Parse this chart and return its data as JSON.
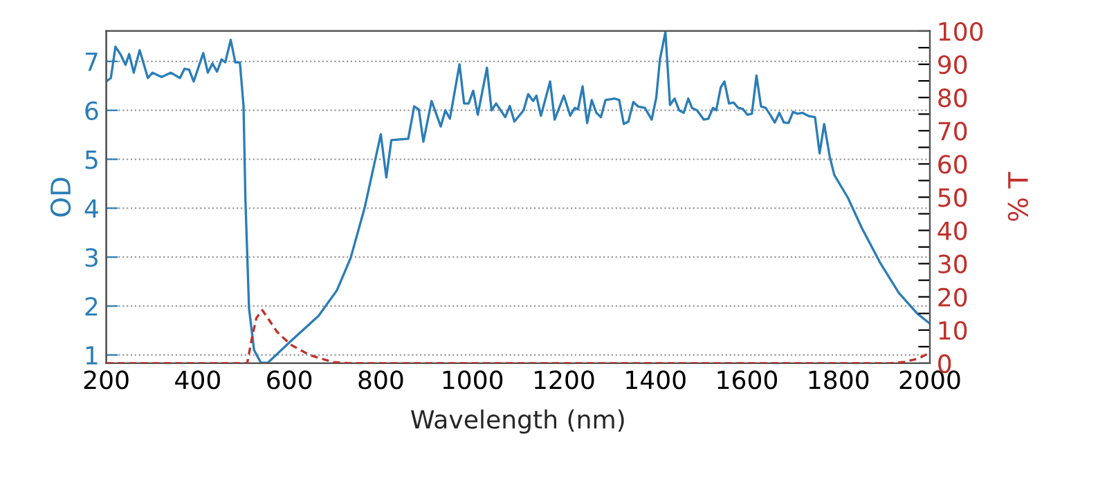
{
  "chart_data": {
    "type": "line",
    "xlabel": "Wavelength (nm)",
    "ylabel": "OD",
    "y2label": "% T",
    "xlim": [
      200,
      2000
    ],
    "xticks": [
      200,
      400,
      600,
      800,
      1000,
      1200,
      1400,
      1600,
      1800,
      2000
    ],
    "ylim": [
      0.83,
      7.62
    ],
    "yticks": [
      1,
      2,
      3,
      4,
      5,
      6,
      7
    ],
    "y2lim": [
      0,
      100
    ],
    "y2ticks": [
      0,
      {
        "value": 5,
        "label": null
      },
      10,
      {
        "value": 15,
        "label": null
      },
      20,
      {
        "value": 25,
        "label": null
      },
      30,
      {
        "value": 35,
        "label": null
      },
      40,
      {
        "value": 45,
        "label": null
      },
      50,
      {
        "value": 55,
        "label": null
      },
      60,
      {
        "value": 65,
        "label": null
      },
      70,
      {
        "value": 75,
        "label": null
      },
      80,
      {
        "value": 85,
        "label": null
      },
      90,
      {
        "value": 95,
        "label": null
      },
      100
    ],
    "grid": "y",
    "legend": false,
    "series": [
      {
        "color": "#2a7db8",
        "line_style": "solid",
        "x": [
          200,
          210,
          220,
          232,
          242,
          250,
          260,
          273,
          291,
          301,
          321,
          341,
          361,
          371,
          381,
          391,
          412,
          422,
          432,
          442,
          452,
          460,
          472,
          482,
          492,
          500,
          504,
          512,
          523,
          538,
          553,
          603,
          664,
          704,
          734,
          765,
          800,
          812,
          823,
          860,
          873,
          883,
          893,
          911,
          931,
          941,
          951,
          972,
          982,
          992,
          1002,
          1012,
          1032,
          1042,
          1052,
          1072,
          1082,
          1092,
          1112,
          1122,
          1133,
          1140,
          1150,
          1170,
          1180,
          1200,
          1214,
          1224,
          1231,
          1241,
          1251,
          1261,
          1271,
          1281,
          1291,
          1311,
          1321,
          1331,
          1341,
          1352,
          1362,
          1377,
          1392,
          1402,
          1410,
          1422,
          1432,
          1442,
          1452,
          1462,
          1472,
          1480,
          1491,
          1506,
          1516,
          1526,
          1533,
          1543,
          1551,
          1561,
          1571,
          1581,
          1591,
          1601,
          1611,
          1621,
          1631,
          1641,
          1651,
          1661,
          1671,
          1681,
          1691,
          1701,
          1711,
          1721,
          1736,
          1749,
          1759,
          1769,
          1781,
          1791,
          1821,
          1851,
          1891,
          1932,
          1972,
          2000
        ],
        "values": [
          6.59,
          6.66,
          7.3,
          7.13,
          6.93,
          7.15,
          6.77,
          7.23,
          6.66,
          6.77,
          6.68,
          6.77,
          6.66,
          6.85,
          6.83,
          6.59,
          7.17,
          6.77,
          6.96,
          6.79,
          7.04,
          6.98,
          7.44,
          6.98,
          6.98,
          6.09,
          4.21,
          1.95,
          1.1,
          0.84,
          0.84,
          1.28,
          1.8,
          2.32,
          2.98,
          4.02,
          5.51,
          4.63,
          5.39,
          5.42,
          6.08,
          6.02,
          5.36,
          6.19,
          5.67,
          6.0,
          5.83,
          6.94,
          6.14,
          6.14,
          6.4,
          5.91,
          6.87,
          6.0,
          6.14,
          5.86,
          6.09,
          5.77,
          6.0,
          6.33,
          6.19,
          6.3,
          5.89,
          6.59,
          5.81,
          6.3,
          5.89,
          6.05,
          6.02,
          6.49,
          5.74,
          6.21,
          5.95,
          5.86,
          6.21,
          6.24,
          6.21,
          5.72,
          5.77,
          6.17,
          6.08,
          6.05,
          5.81,
          6.26,
          7.04,
          7.6,
          6.11,
          6.24,
          6.0,
          5.95,
          6.24,
          6.05,
          6.0,
          5.81,
          5.83,
          6.05,
          6.0,
          6.47,
          6.59,
          6.14,
          6.16,
          6.05,
          6.03,
          5.91,
          5.93,
          6.71,
          6.08,
          6.05,
          5.91,
          5.75,
          5.95,
          5.75,
          5.74,
          5.97,
          5.93,
          5.95,
          5.88,
          5.86,
          5.12,
          5.72,
          5.06,
          4.68,
          4.21,
          3.6,
          2.89,
          2.27,
          1.85,
          1.64
        ]
      },
      {
        "color": "#c0302b",
        "line_style": "dashed",
        "axis": "y2",
        "x": [
          200,
          508,
          518,
          528,
          541,
          553,
          573,
          603,
          644,
          694,
          734,
          1914,
          1944,
          1975,
          1990,
          2000
        ],
        "values": [
          0,
          0,
          7.4,
          13.6,
          16.0,
          13.6,
          9.5,
          5.6,
          2.5,
          0.4,
          0,
          0,
          0.4,
          1.4,
          2.5,
          3
        ]
      }
    ]
  }
}
